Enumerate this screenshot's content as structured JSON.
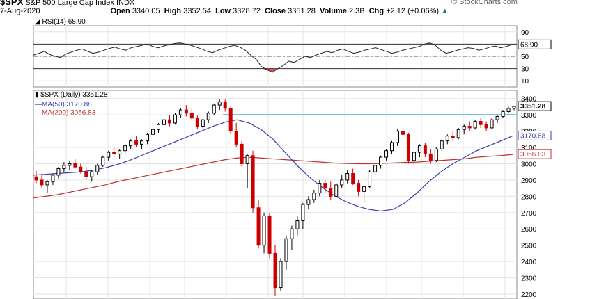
{
  "header": {
    "symbol": "$SPX",
    "name": "S&P 500 Large Cap Index INDX",
    "date": "7-Aug-2020",
    "open_label": "Open",
    "open": "3340.05",
    "high_label": "High",
    "high": "3352.54",
    "low_label": "Low",
    "low": "3328.72",
    "close_label": "Close",
    "close": "3351.28",
    "volume_label": "Volume",
    "volume": "2.3B",
    "chg_label": "Chg",
    "chg": "+2.12 (+0.06%)",
    "watermark": "© StockCharts.com"
  },
  "legend": {
    "rsi": "RSI(14) 68.90",
    "price": "$SPX (Daily) 3351.28",
    "ma50": "MA(50) 3170.88",
    "ma200": "MA(200) 3056.83"
  },
  "tags": {
    "rsi": "68.90",
    "close": "3351.28",
    "ma50": "3170.88",
    "ma200": "3056.83"
  },
  "colors": {
    "up": "#000000",
    "down": "#cc0000",
    "ma50": "#3a3ab0",
    "ma200": "#c03030",
    "resistance": "#1ba6e8",
    "rsi": "#222222",
    "rsi_fill": "#2e7d32",
    "grid": "#e4e4e4"
  },
  "chart_data": [
    {
      "type": "line",
      "series": [
        {
          "name": "RSI(14)",
          "values": [
            52,
            55,
            58,
            53,
            50,
            48,
            54,
            57,
            60,
            62,
            58,
            55,
            57,
            60,
            63,
            65,
            62,
            60,
            64,
            66,
            68,
            70,
            66,
            64,
            67,
            69,
            71,
            72,
            70,
            68,
            65,
            62,
            58,
            56,
            60,
            63,
            66,
            68,
            65,
            60,
            52,
            45,
            33,
            28,
            24,
            30,
            35,
            42,
            40,
            45,
            50,
            48,
            52,
            55,
            58,
            56,
            60,
            62,
            58,
            55,
            57,
            60,
            62,
            64,
            61,
            58,
            55,
            57,
            60,
            62,
            64,
            66,
            70,
            72,
            68,
            60,
            55,
            57,
            60,
            62,
            64,
            63,
            60,
            62,
            65,
            67,
            64,
            66,
            69,
            68.9
          ]
        }
      ],
      "ylim": [
        0,
        100
      ],
      "yticks": [
        10,
        30,
        50,
        70,
        90
      ],
      "overbought": 70,
      "oversold": 30,
      "midline": 50,
      "legend_position": "top-left"
    },
    {
      "type": "candlestick",
      "ylim": [
        2170,
        3450
      ],
      "yticks": [
        2200,
        2300,
        2400,
        2500,
        2600,
        2700,
        2800,
        2900,
        3000,
        3100,
        3200,
        3300,
        3400
      ],
      "ohlc": [
        [
          2920,
          2955,
          2880,
          2900
        ],
        [
          2900,
          2930,
          2850,
          2870
        ],
        [
          2870,
          2900,
          2820,
          2890
        ],
        [
          2890,
          2940,
          2870,
          2930
        ],
        [
          2930,
          2980,
          2910,
          2970
        ],
        [
          2970,
          3010,
          2950,
          2990
        ],
        [
          2990,
          3020,
          2960,
          3000
        ],
        [
          3000,
          3030,
          2970,
          2980
        ],
        [
          2980,
          3000,
          2940,
          2950
        ],
        [
          2950,
          2980,
          2900,
          2920
        ],
        [
          2920,
          2960,
          2890,
          2950
        ],
        [
          2950,
          3000,
          2930,
          2990
        ],
        [
          2990,
          3050,
          2980,
          3040
        ],
        [
          3040,
          3080,
          3020,
          3070
        ],
        [
          3070,
          3100,
          3040,
          3060
        ],
        [
          3060,
          3090,
          3030,
          3080
        ],
        [
          3080,
          3120,
          3060,
          3110
        ],
        [
          3110,
          3150,
          3090,
          3140
        ],
        [
          3140,
          3170,
          3100,
          3120
        ],
        [
          3120,
          3150,
          3090,
          3140
        ],
        [
          3140,
          3190,
          3120,
          3180
        ],
        [
          3180,
          3220,
          3160,
          3210
        ],
        [
          3210,
          3250,
          3190,
          3240
        ],
        [
          3240,
          3280,
          3220,
          3270
        ],
        [
          3270,
          3300,
          3230,
          3250
        ],
        [
          3250,
          3310,
          3240,
          3300
        ],
        [
          3300,
          3340,
          3280,
          3330
        ],
        [
          3330,
          3360,
          3290,
          3310
        ],
        [
          3310,
          3340,
          3270,
          3280
        ],
        [
          3280,
          3300,
          3210,
          3230
        ],
        [
          3230,
          3280,
          3210,
          3270
        ],
        [
          3270,
          3320,
          3250,
          3310
        ],
        [
          3310,
          3370,
          3300,
          3360
        ],
        [
          3360,
          3395,
          3330,
          3380
        ],
        [
          3380,
          3393,
          3320,
          3340
        ],
        [
          3340,
          3350,
          3180,
          3200
        ],
        [
          3200,
          3250,
          3100,
          3120
        ],
        [
          3120,
          3140,
          2980,
          3000
        ],
        [
          3000,
          3060,
          2850,
          3050
        ],
        [
          3050,
          3080,
          2700,
          2730
        ],
        [
          2730,
          2780,
          2480,
          2500
        ],
        [
          2500,
          2700,
          2450,
          2680
        ],
        [
          2680,
          2700,
          2420,
          2450
        ],
        [
          2450,
          2500,
          2190,
          2240
        ],
        [
          2240,
          2420,
          2220,
          2400
        ],
        [
          2400,
          2560,
          2350,
          2540
        ],
        [
          2540,
          2620,
          2470,
          2600
        ],
        [
          2600,
          2680,
          2560,
          2650
        ],
        [
          2650,
          2760,
          2600,
          2750
        ],
        [
          2750,
          2800,
          2720,
          2780
        ],
        [
          2780,
          2840,
          2760,
          2820
        ],
        [
          2820,
          2900,
          2800,
          2880
        ],
        [
          2880,
          2900,
          2820,
          2850
        ],
        [
          2850,
          2890,
          2780,
          2800
        ],
        [
          2800,
          2880,
          2790,
          2870
        ],
        [
          2870,
          2930,
          2850,
          2900
        ],
        [
          2900,
          2960,
          2880,
          2940
        ],
        [
          2940,
          2970,
          2870,
          2880
        ],
        [
          2880,
          2900,
          2800,
          2830
        ],
        [
          2830,
          2870,
          2760,
          2860
        ],
        [
          2860,
          2960,
          2850,
          2950
        ],
        [
          2950,
          3000,
          2920,
          2990
        ],
        [
          2990,
          3050,
          2970,
          3040
        ],
        [
          3040,
          3090,
          3020,
          3080
        ],
        [
          3080,
          3140,
          3060,
          3130
        ],
        [
          3130,
          3210,
          3110,
          3200
        ],
        [
          3200,
          3230,
          3150,
          3180
        ],
        [
          3180,
          3190,
          3000,
          3020
        ],
        [
          3020,
          3080,
          2990,
          3070
        ],
        [
          3070,
          3120,
          3040,
          3110
        ],
        [
          3110,
          3130,
          3040,
          3060
        ],
        [
          3060,
          3090,
          3000,
          3020
        ],
        [
          3020,
          3100,
          3010,
          3090
        ],
        [
          3090,
          3150,
          3080,
          3140
        ],
        [
          3140,
          3180,
          3120,
          3170
        ],
        [
          3170,
          3200,
          3140,
          3160
        ],
        [
          3160,
          3220,
          3150,
          3210
        ],
        [
          3210,
          3240,
          3180,
          3230
        ],
        [
          3230,
          3260,
          3200,
          3220
        ],
        [
          3220,
          3270,
          3210,
          3260
        ],
        [
          3260,
          3280,
          3220,
          3240
        ],
        [
          3240,
          3260,
          3200,
          3220
        ],
        [
          3220,
          3280,
          3210,
          3270
        ],
        [
          3270,
          3300,
          3250,
          3290
        ],
        [
          3290,
          3330,
          3280,
          3320
        ],
        [
          3320,
          3350,
          3310,
          3340
        ],
        [
          3340.05,
          3352.54,
          3328.72,
          3351.28
        ]
      ],
      "ma50": [
        2930,
        2935,
        2940,
        2945,
        2950,
        2960,
        2975,
        2995,
        3020,
        3050,
        3080,
        3110,
        3140,
        3170,
        3200,
        3230,
        3255,
        3270,
        3250,
        3210,
        3150,
        3070,
        2990,
        2920,
        2860,
        2810,
        2770,
        2740,
        2720,
        2710,
        2720,
        2760,
        2820,
        2890,
        2950,
        3000,
        3040,
        3080,
        3110,
        3140,
        3170.88
      ],
      "ma200": [
        2790,
        2800,
        2810,
        2825,
        2840,
        2855,
        2870,
        2890,
        2905,
        2920,
        2935,
        2950,
        2965,
        2980,
        2995,
        3010,
        3025,
        3035,
        3040,
        3035,
        3030,
        3025,
        3020,
        3015,
        3010,
        3005,
        3002,
        3000,
        3000,
        3002,
        3005,
        3008,
        3010,
        3015,
        3020,
        3025,
        3030,
        3040,
        3045,
        3050,
        3056.83
      ],
      "resistance": 3300,
      "legend_position": "top-left"
    }
  ]
}
